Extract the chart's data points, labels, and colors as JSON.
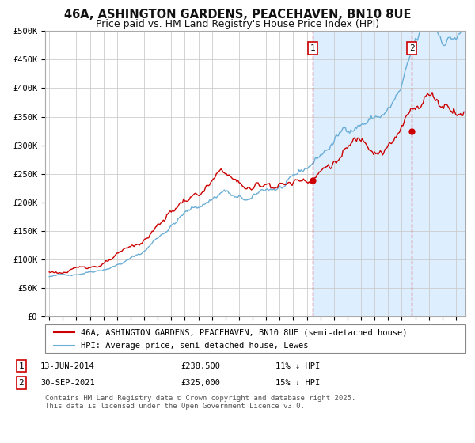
{
  "title": "46A, ASHINGTON GARDENS, PEACEHAVEN, BN10 8UE",
  "subtitle": "Price paid vs. HM Land Registry's House Price Index (HPI)",
  "ylabel_ticks": [
    "£0",
    "£50K",
    "£100K",
    "£150K",
    "£200K",
    "£250K",
    "£300K",
    "£350K",
    "£400K",
    "£450K",
    "£500K"
  ],
  "ylim": [
    0,
    500000
  ],
  "xlim_start": 1994.7,
  "xlim_end": 2025.7,
  "marker1_x": 2014.45,
  "marker1_y": 238500,
  "marker2_x": 2021.75,
  "marker2_y": 325000,
  "marker1_date": "13-JUN-2014",
  "marker1_price": "£238,500",
  "marker1_hpi": "11% ↓ HPI",
  "marker2_date": "30-SEP-2021",
  "marker2_price": "£325,000",
  "marker2_hpi": "15% ↓ HPI",
  "shading_color": "#ddeeff",
  "hpi_line_color": "#6baed6",
  "price_line_color": "#cc0000",
  "vline_color": "#dd0000",
  "legend_label1": "46A, ASHINGTON GARDENS, PEACEHAVEN, BN10 8UE (semi-detached house)",
  "legend_label2": "HPI: Average price, semi-detached house, Lewes",
  "footer": "Contains HM Land Registry data © Crown copyright and database right 2025.\nThis data is licensed under the Open Government Licence v3.0.",
  "background_color": "#ffffff",
  "grid_color": "#cccccc",
  "title_fontsize": 10.5,
  "subtitle_fontsize": 9,
  "tick_fontsize": 7.5,
  "legend_fontsize": 7.5,
  "annotation_fontsize": 7.5
}
